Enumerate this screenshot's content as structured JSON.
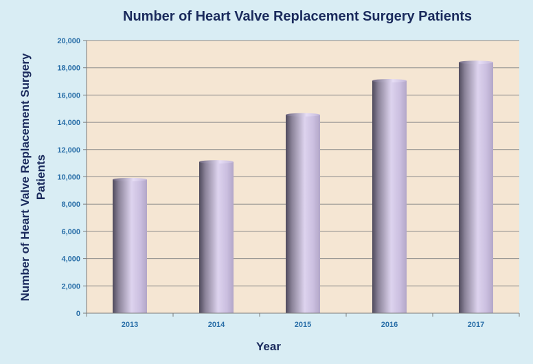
{
  "chart_data": {
    "type": "bar",
    "title": "Number of Heart Valve Replacement Surgery Patients",
    "xlabel": "Year",
    "ylabel_lines": [
      "Number of Heart  Valve Replacement Surgery",
      "Patients"
    ],
    "categories": [
      "2013",
      "2014",
      "2015",
      "2016",
      "2017"
    ],
    "values": [
      9800,
      11100,
      14550,
      17050,
      18400
    ],
    "ylim": [
      0,
      20000
    ],
    "yticks": [
      0,
      2000,
      4000,
      6000,
      8000,
      10000,
      12000,
      14000,
      16000,
      18000,
      20000
    ],
    "ytick_labels": [
      "0",
      "2,000",
      "4,000",
      "6,000",
      "8,000",
      "10,000",
      "12,000",
      "14,000",
      "16,000",
      "18,000",
      "20,000"
    ],
    "grid": true,
    "legend": "none",
    "colors": {
      "page_background": "#d9edf4",
      "plot_background": "#f5e6d3",
      "bar_light": "#d6cce8",
      "bar_dark": "#5a5368",
      "grid": "#8a8a8a",
      "title": "#1a2a5c",
      "tick_labels": "#2a6fa8"
    }
  }
}
